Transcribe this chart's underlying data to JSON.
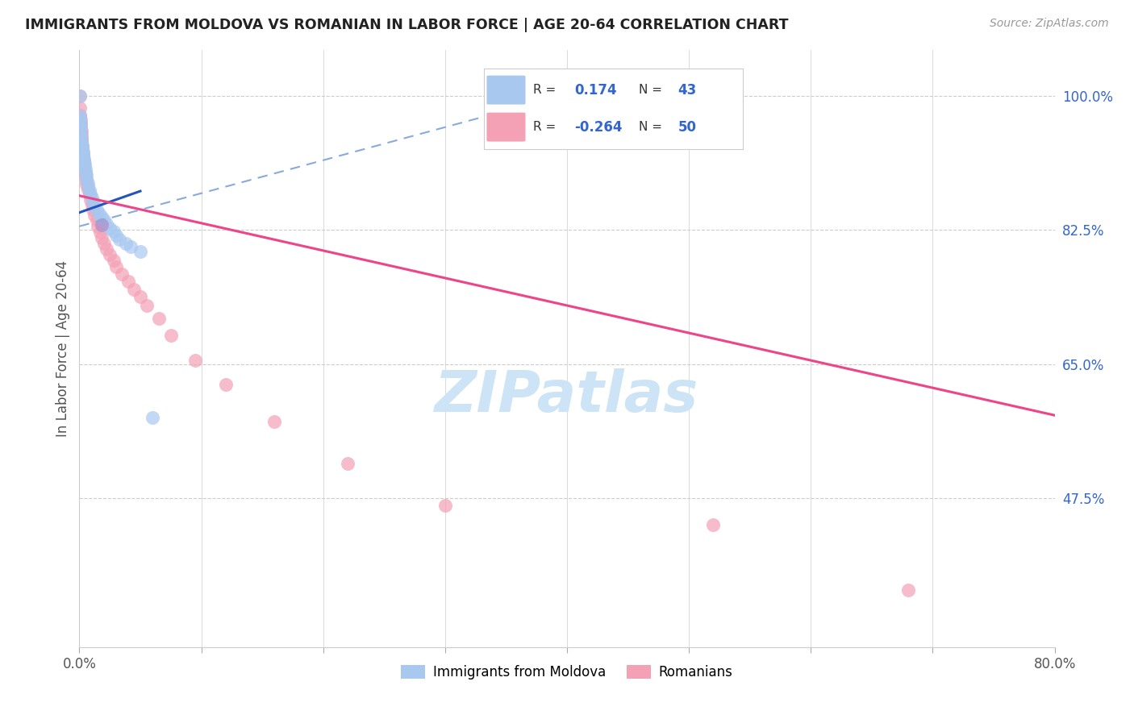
{
  "title": "IMMIGRANTS FROM MOLDOVA VS ROMANIAN IN LABOR FORCE | AGE 20-64 CORRELATION CHART",
  "source": "Source: ZipAtlas.com",
  "ylabel": "In Labor Force | Age 20-64",
  "yticks_right": [
    1.0,
    0.825,
    0.65,
    0.475
  ],
  "ytick_labels_right": [
    "100.0%",
    "82.5%",
    "65.0%",
    "47.5%"
  ],
  "xmin": 0.0,
  "xmax": 0.8,
  "ymin": 0.28,
  "ymax": 1.06,
  "moldova_color": "#a8c8f0",
  "romanian_color": "#f4a0b5",
  "moldova_line_color": "#2255bb",
  "romanian_line_color": "#ee4488",
  "dashed_line_color": "#88aadd",
  "legend_border": "#dddddd",
  "grid_color": "#cccccc",
  "watermark_color": "#cce4f5",
  "moldova_scatter_x": [
    0.0003,
    0.0005,
    0.0006,
    0.0008,
    0.001,
    0.0012,
    0.0013,
    0.0015,
    0.0018,
    0.002,
    0.0022,
    0.0025,
    0.003,
    0.003,
    0.0032,
    0.0035,
    0.004,
    0.0042,
    0.0045,
    0.005,
    0.005,
    0.0055,
    0.006,
    0.007,
    0.007,
    0.008,
    0.009,
    0.01,
    0.011,
    0.012,
    0.014,
    0.016,
    0.018,
    0.02,
    0.022,
    0.025,
    0.028,
    0.03,
    0.033,
    0.038,
    0.042,
    0.05,
    0.06
  ],
  "moldova_scatter_y": [
    1.0,
    0.975,
    0.97,
    0.965,
    0.96,
    0.955,
    0.95,
    0.945,
    0.94,
    0.938,
    0.935,
    0.93,
    0.928,
    0.925,
    0.922,
    0.918,
    0.915,
    0.912,
    0.908,
    0.905,
    0.9,
    0.897,
    0.892,
    0.887,
    0.882,
    0.877,
    0.872,
    0.868,
    0.862,
    0.858,
    0.852,
    0.847,
    0.842,
    0.838,
    0.833,
    0.828,
    0.823,
    0.818,
    0.813,
    0.808,
    0.803,
    0.797,
    0.58
  ],
  "romanian_scatter_x": [
    0.0003,
    0.0005,
    0.0007,
    0.001,
    0.001,
    0.0012,
    0.0015,
    0.0018,
    0.002,
    0.002,
    0.0022,
    0.0025,
    0.003,
    0.003,
    0.0035,
    0.004,
    0.004,
    0.005,
    0.005,
    0.0055,
    0.006,
    0.007,
    0.008,
    0.009,
    0.01,
    0.011,
    0.012,
    0.014,
    0.015,
    0.017,
    0.018,
    0.02,
    0.022,
    0.025,
    0.028,
    0.03,
    0.035,
    0.04,
    0.045,
    0.05,
    0.055,
    0.065,
    0.075,
    0.095,
    0.12,
    0.16,
    0.22,
    0.3,
    0.52,
    0.68
  ],
  "romanian_scatter_y": [
    1.0,
    0.985,
    0.975,
    0.97,
    0.965,
    0.96,
    0.955,
    0.95,
    0.945,
    0.94,
    0.935,
    0.93,
    0.925,
    0.92,
    0.915,
    0.91,
    0.905,
    0.9,
    0.895,
    0.89,
    0.885,
    0.878,
    0.872,
    0.865,
    0.858,
    0.852,
    0.845,
    0.838,
    0.83,
    0.822,
    0.815,
    0.808,
    0.8,
    0.793,
    0.785,
    0.777,
    0.768,
    0.758,
    0.748,
    0.738,
    0.727,
    0.71,
    0.688,
    0.655,
    0.623,
    0.575,
    0.52,
    0.465,
    0.44,
    0.355
  ],
  "purple_x": [
    0.018
  ],
  "purple_y": [
    0.832
  ],
  "moldova_line_x0": 0.0,
  "moldova_line_y0": 0.848,
  "moldova_line_x1": 0.05,
  "moldova_line_y1": 0.876,
  "dashed_line_x0": 0.0,
  "dashed_line_y0": 0.83,
  "dashed_line_x1": 0.44,
  "dashed_line_y1": 1.02,
  "romanian_line_x0": 0.0,
  "romanian_line_y0": 0.87,
  "romanian_line_x1": 0.8,
  "romanian_line_y1": 0.583,
  "xtick_positions": [
    0.0,
    0.1,
    0.2,
    0.3,
    0.4,
    0.5,
    0.6,
    0.7,
    0.8
  ],
  "xtick_label_positions": [
    0.0,
    0.8
  ],
  "xtick_labels_shown": [
    "0.0%",
    "80.0%"
  ]
}
